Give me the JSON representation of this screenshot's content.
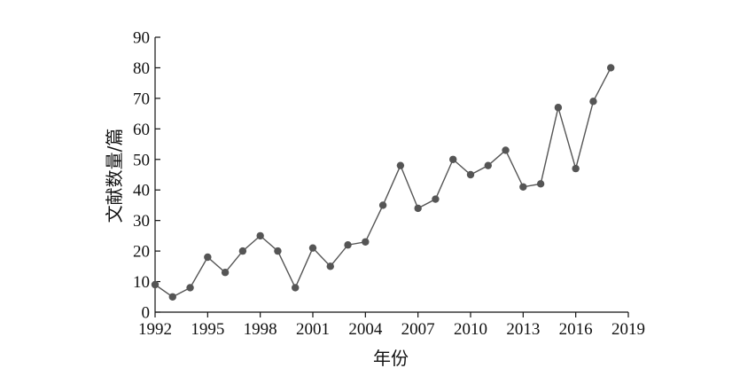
{
  "chart_data": {
    "type": "line",
    "title": "",
    "xlabel": "年份",
    "ylabel": "文献数量/篇",
    "xlim": [
      1992,
      2019
    ],
    "ylim": [
      0,
      90
    ],
    "x_ticks": [
      1992,
      1995,
      1998,
      2001,
      2004,
      2007,
      2010,
      2013,
      2016,
      2019
    ],
    "y_ticks": [
      0,
      10,
      20,
      30,
      40,
      50,
      60,
      70,
      80,
      90
    ],
    "grid": false,
    "legend": "none",
    "colors": {
      "line": "#555555",
      "marker": "#555555"
    },
    "x": [
      1992,
      1993,
      1994,
      1995,
      1996,
      1997,
      1998,
      1999,
      2000,
      2001,
      2002,
      2003,
      2004,
      2005,
      2006,
      2007,
      2008,
      2009,
      2010,
      2011,
      2012,
      2013,
      2014,
      2015,
      2016,
      2017,
      2018
    ],
    "series": [
      {
        "values": [
          9,
          5,
          8,
          18,
          13,
          20,
          25,
          20,
          8,
          21,
          15,
          22,
          23,
          35,
          48,
          34,
          37,
          50,
          45,
          48,
          53,
          41,
          42,
          67,
          47,
          69,
          80
        ]
      }
    ]
  }
}
